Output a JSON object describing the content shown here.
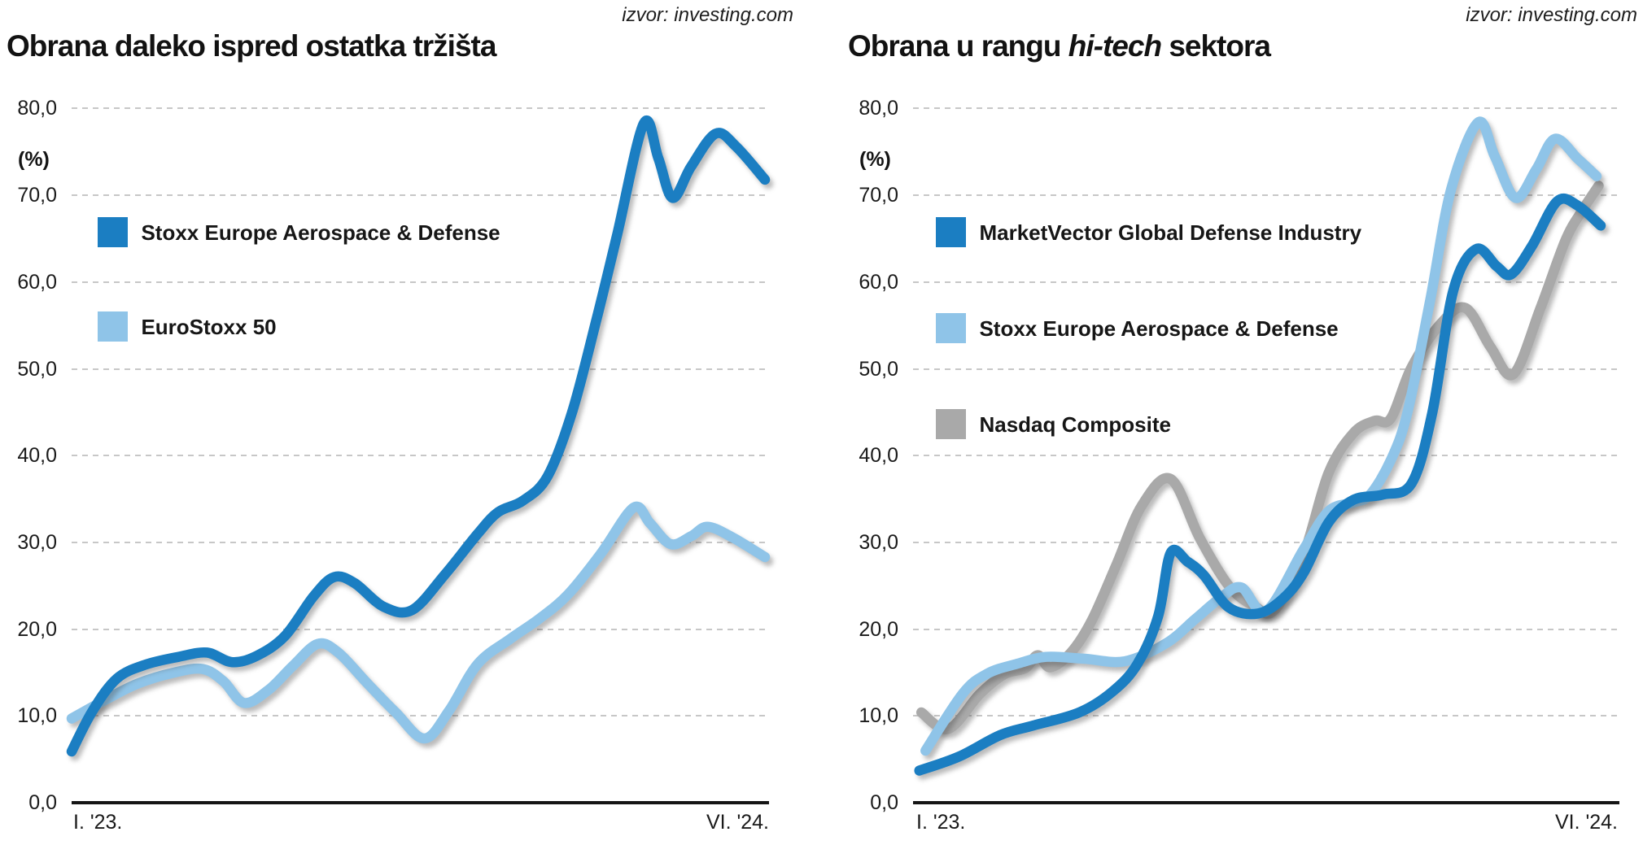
{
  "chart_data": [
    {
      "type": "line",
      "title": "Obrana daleko ispred ostatka tržišta",
      "title_parts": {
        "pre": "Obrana daleko ispred ostatka tržišta",
        "italic": "",
        "post": ""
      },
      "source": "izvor: investing.com",
      "ylabel": "(%)",
      "ylim": [
        0,
        80
      ],
      "yticks": [
        [
          0,
          "0,0"
        ],
        [
          10,
          "10,0"
        ],
        [
          20,
          "20,0"
        ],
        [
          30,
          "30,0"
        ],
        [
          40,
          "40,0"
        ],
        [
          50,
          "50,0"
        ],
        [
          60,
          "60,0"
        ],
        [
          70,
          "70,0"
        ],
        [
          80,
          "80,0"
        ]
      ],
      "x_axis": {
        "left_label": "I. '23.",
        "right_label": "VI. '24.",
        "unit": "months from Jan 2023 to Jun 2024"
      },
      "xlim": [
        0,
        17
      ],
      "grid": "dashed-horizontal",
      "legend_position": "inside-upper-left",
      "series": [
        {
          "name": "EuroStoxx 50",
          "color": "#8fc4e8",
          "points": [
            [
              0,
              9.7
            ],
            [
              0.8,
              11.8
            ],
            [
              1.6,
              13.7
            ],
            [
              2.5,
              15.0
            ],
            [
              3.2,
              15.4
            ],
            [
              3.7,
              14.0
            ],
            [
              4.2,
              11.5
            ],
            [
              4.8,
              13.0
            ],
            [
              5.4,
              15.8
            ],
            [
              6.0,
              18.3
            ],
            [
              6.5,
              17.3
            ],
            [
              7.2,
              13.8
            ],
            [
              7.9,
              10.4
            ],
            [
              8.6,
              7.4
            ],
            [
              9.2,
              10.6
            ],
            [
              9.9,
              16.0
            ],
            [
              10.7,
              18.9
            ],
            [
              11.4,
              21.2
            ],
            [
              12.1,
              24.0
            ],
            [
              12.9,
              28.7
            ],
            [
              13.7,
              34.0
            ],
            [
              14.1,
              32.2
            ],
            [
              14.6,
              29.8
            ],
            [
              15.1,
              30.7
            ],
            [
              15.5,
              31.8
            ],
            [
              16.1,
              30.6
            ],
            [
              16.9,
              28.3
            ]
          ]
        },
        {
          "name": "Stoxx Europe Aerospace & Defense",
          "color": "#1b7ec2",
          "points": [
            [
              0,
              5.9
            ],
            [
              0.5,
              10.5
            ],
            [
              1.1,
              14.3
            ],
            [
              1.8,
              15.9
            ],
            [
              2.6,
              16.8
            ],
            [
              3.3,
              17.3
            ],
            [
              3.9,
              16.2
            ],
            [
              4.5,
              16.9
            ],
            [
              5.2,
              19.2
            ],
            [
              5.9,
              23.8
            ],
            [
              6.4,
              26.0
            ],
            [
              6.9,
              25.3
            ],
            [
              7.6,
              22.6
            ],
            [
              8.3,
              22.2
            ],
            [
              9.1,
              26.3
            ],
            [
              9.9,
              31.0
            ],
            [
              10.4,
              33.5
            ],
            [
              11.0,
              34.8
            ],
            [
              11.6,
              37.6
            ],
            [
              12.2,
              45.0
            ],
            [
              12.8,
              55.8
            ],
            [
              13.3,
              65.5
            ],
            [
              13.95,
              78.3
            ],
            [
              14.3,
              74.3
            ],
            [
              14.65,
              69.7
            ],
            [
              15.1,
              73.3
            ],
            [
              15.7,
              77.1
            ],
            [
              16.2,
              75.6
            ],
            [
              16.9,
              71.8
            ]
          ]
        }
      ],
      "legend": {
        "order_series_indices": [
          1,
          0
        ]
      }
    },
    {
      "type": "line",
      "title": "Obrana u rangu hi-tech sektora",
      "title_parts": {
        "pre": "Obrana u rangu ",
        "italic": "hi-tech",
        "post": " sektora"
      },
      "source": "izvor: investing.com",
      "ylabel": "(%)",
      "ylim": [
        0,
        80
      ],
      "yticks": [
        [
          0,
          "0,0"
        ],
        [
          10,
          "10,0"
        ],
        [
          20,
          "20,0"
        ],
        [
          30,
          "30,0"
        ],
        [
          40,
          "40,0"
        ],
        [
          50,
          "50,0"
        ],
        [
          60,
          "60,0"
        ],
        [
          70,
          "70,0"
        ],
        [
          80,
          "80,0"
        ]
      ],
      "x_axis": {
        "left_label": "I. '23.",
        "right_label": "VI. '24.",
        "unit": "months from Jan 2023 to Jun 2024"
      },
      "xlim": [
        0,
        17
      ],
      "grid": "dashed-horizontal",
      "legend_position": "inside-upper-left",
      "series": [
        {
          "name": "Nasdaq Composite",
          "color": "#a9a9a9",
          "points": [
            [
              0.2,
              10.4
            ],
            [
              0.85,
              8.5
            ],
            [
              1.6,
              12.5
            ],
            [
              2.2,
              14.8
            ],
            [
              2.7,
              15.5
            ],
            [
              3.0,
              17.0
            ],
            [
              3.3,
              15.6
            ],
            [
              3.8,
              17.3
            ],
            [
              4.3,
              21.0
            ],
            [
              4.9,
              27.5
            ],
            [
              5.5,
              34.2
            ],
            [
              6.2,
              37.3
            ],
            [
              6.9,
              30.5
            ],
            [
              7.6,
              25.0
            ],
            [
              8.2,
              22.7
            ],
            [
              8.7,
              22.2
            ],
            [
              9.4,
              28.6
            ],
            [
              10.0,
              38.0
            ],
            [
              10.6,
              42.6
            ],
            [
              11.1,
              44.0
            ],
            [
              11.5,
              44.3
            ],
            [
              12.0,
              50.2
            ],
            [
              12.7,
              55.2
            ],
            [
              13.3,
              57.0
            ],
            [
              13.9,
              52.5
            ],
            [
              14.45,
              49.4
            ],
            [
              15.1,
              57.0
            ],
            [
              15.7,
              64.8
            ],
            [
              16.1,
              68.2
            ],
            [
              16.5,
              71.1
            ]
          ]
        },
        {
          "name": "Stoxx Europe Aerospace & Defense",
          "color": "#8fc4e8",
          "points": [
            [
              0.3,
              6.0
            ],
            [
              1.2,
              12.6
            ],
            [
              1.8,
              14.9
            ],
            [
              2.5,
              16.0
            ],
            [
              3.2,
              16.8
            ],
            [
              4.1,
              16.6
            ],
            [
              5.1,
              16.3
            ],
            [
              6.1,
              18.4
            ],
            [
              6.8,
              21.2
            ],
            [
              7.4,
              23.6
            ],
            [
              7.9,
              24.8
            ],
            [
              8.5,
              22.1
            ],
            [
              9.4,
              29.2
            ],
            [
              10.0,
              33.6
            ],
            [
              10.6,
              34.6
            ],
            [
              11.0,
              35.5
            ],
            [
              11.5,
              39.5
            ],
            [
              11.9,
              45.0
            ],
            [
              12.45,
              58.0
            ],
            [
              12.95,
              70.7
            ],
            [
              13.6,
              78.4
            ],
            [
              14.0,
              74.5
            ],
            [
              14.5,
              69.7
            ],
            [
              15.0,
              73.0
            ],
            [
              15.45,
              76.5
            ],
            [
              16.0,
              74.2
            ],
            [
              16.45,
              72.2
            ]
          ]
        },
        {
          "name": "MarketVector Global Defense Industry",
          "color": "#1b7ec2",
          "points": [
            [
              0.15,
              3.7
            ],
            [
              1.1,
              5.3
            ],
            [
              2.1,
              7.8
            ],
            [
              2.9,
              8.9
            ],
            [
              4.0,
              10.4
            ],
            [
              4.8,
              12.8
            ],
            [
              5.4,
              16.0
            ],
            [
              5.9,
              21.5
            ],
            [
              6.2,
              28.8
            ],
            [
              6.6,
              27.8
            ],
            [
              7.0,
              26.2
            ],
            [
              7.6,
              22.5
            ],
            [
              8.3,
              21.8
            ],
            [
              8.9,
              23.5
            ],
            [
              9.4,
              26.5
            ],
            [
              10.0,
              32.3
            ],
            [
              10.6,
              34.9
            ],
            [
              11.3,
              35.5
            ],
            [
              12.0,
              36.8
            ],
            [
              12.5,
              45.0
            ],
            [
              13.0,
              59.0
            ],
            [
              13.55,
              63.8
            ],
            [
              14.05,
              61.8
            ],
            [
              14.4,
              60.9
            ],
            [
              14.9,
              64.2
            ],
            [
              15.5,
              69.3
            ],
            [
              16.0,
              68.8
            ],
            [
              16.55,
              66.5
            ]
          ]
        }
      ],
      "legend": {
        "order_series_indices": [
          2,
          1,
          0
        ]
      }
    }
  ]
}
